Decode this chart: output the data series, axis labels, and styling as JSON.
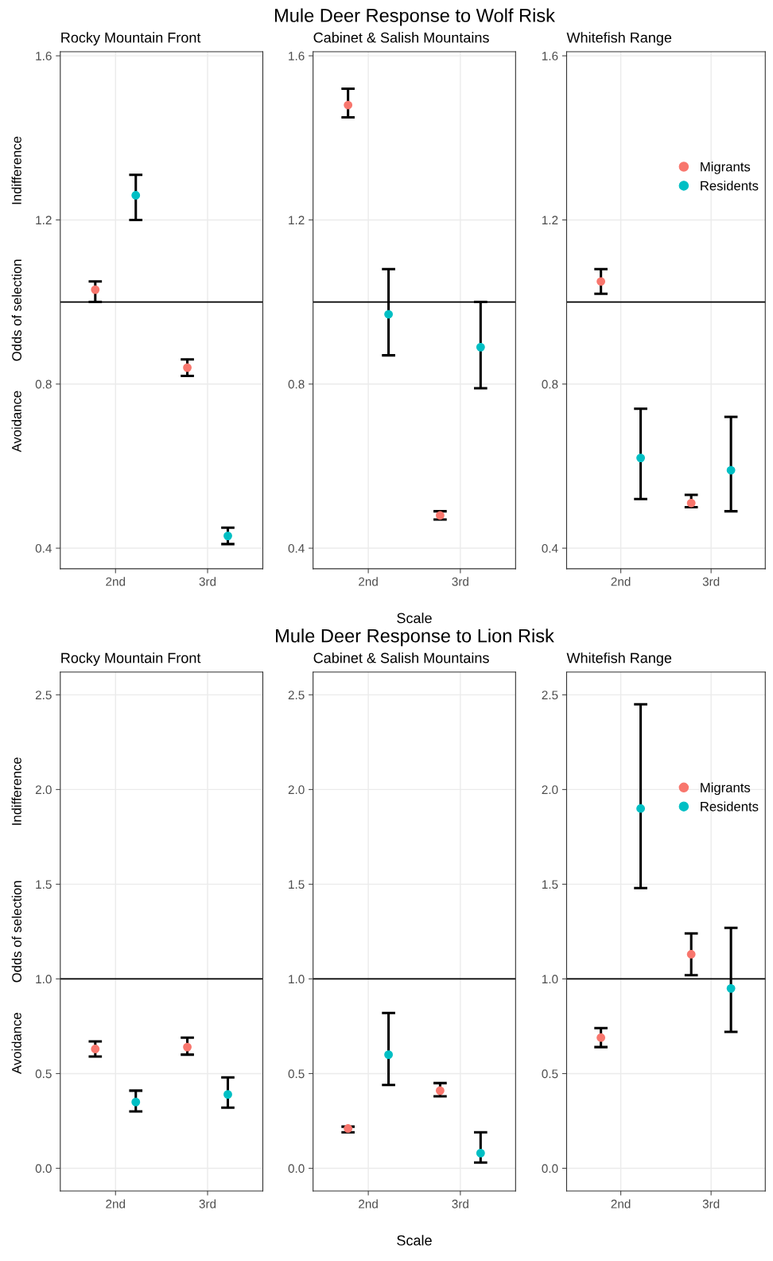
{
  "chart_data": [
    {
      "type": "scatter",
      "subtitle": "Rocky Mountain Front",
      "ylabel": "Odds of selection",
      "annotations": [
        "Indifference",
        "Avoidance"
      ],
      "categories": [
        "2nd",
        "3rd"
      ],
      "ylim": [
        0.35,
        1.61
      ],
      "yticks": [
        {
          "value": 0.4,
          "label": "0.4"
        },
        {
          "value": 0.8,
          "label": "0.8"
        },
        {
          "value": 1.2,
          "label": "1.2"
        },
        {
          "value": 1.6,
          "label": "1.6"
        }
      ],
      "grid": true,
      "marker": "circle",
      "ref_lines": [
        {
          "axis": "y",
          "value": 1.0,
          "color": "#000000"
        }
      ],
      "series": [
        {
          "color": "#f8766d",
          "values": [
            1.03,
            0.84
          ],
          "errors": [
            [
              1.0,
              1.05
            ],
            [
              0.82,
              0.86
            ]
          ]
        },
        {
          "color": "#00bfc4",
          "values": [
            1.26,
            0.43
          ],
          "errors": [
            [
              1.2,
              1.31
            ],
            [
              0.41,
              0.45
            ]
          ]
        }
      ]
    },
    {
      "type": "scatter",
      "title": "Mule Deer Response to Wolf Risk",
      "subtitle": "Cabinet & Salish Mountains",
      "xlabel": "Scale",
      "categories": [
        "2nd",
        "3rd"
      ],
      "ylim": [
        0.35,
        1.61
      ],
      "yticks": [
        {
          "value": 0.4,
          "label": "0.4"
        },
        {
          "value": 0.8,
          "label": "0.8"
        },
        {
          "value": 1.2,
          "label": "1.2"
        },
        {
          "value": 1.6,
          "label": "1.6"
        }
      ],
      "grid": true,
      "marker": "circle",
      "ref_lines": [
        {
          "axis": "y",
          "value": 1.0,
          "color": "#000000"
        }
      ],
      "series": [
        {
          "color": "#f8766d",
          "values": [
            1.48,
            0.48
          ],
          "errors": [
            [
              1.45,
              1.52
            ],
            [
              0.47,
              0.49
            ]
          ]
        },
        {
          "color": "#00bfc4",
          "values": [
            0.97,
            0.89
          ],
          "errors": [
            [
              0.87,
              1.08
            ],
            [
              0.79,
              1.0
            ]
          ]
        }
      ]
    },
    {
      "type": "scatter",
      "subtitle": "Whitefish Range",
      "categories": [
        "2nd",
        "3rd"
      ],
      "ylim": [
        0.35,
        1.61
      ],
      "yticks": [
        {
          "value": 0.4,
          "label": "0.4"
        },
        {
          "value": 0.8,
          "label": "0.8"
        },
        {
          "value": 1.2,
          "label": "1.2"
        },
        {
          "value": 1.6,
          "label": "1.6"
        }
      ],
      "grid": true,
      "marker": "circle",
      "legend": "top right",
      "ref_lines": [
        {
          "axis": "y",
          "value": 1.0,
          "color": "#000000"
        }
      ],
      "series": [
        {
          "name": "Migrants",
          "color": "#f8766d",
          "values": [
            1.05,
            0.51
          ],
          "errors": [
            [
              1.02,
              1.08
            ],
            [
              0.5,
              0.53
            ]
          ]
        },
        {
          "name": "Residents",
          "color": "#00bfc4",
          "values": [
            0.62,
            0.59
          ],
          "errors": [
            [
              0.52,
              0.74
            ],
            [
              0.49,
              0.72
            ]
          ]
        }
      ]
    },
    {
      "type": "scatter",
      "subtitle": "Rocky Mountain Front",
      "ylabel": "Odds of selection",
      "annotations": [
        "Indifference",
        "Avoidance"
      ],
      "categories": [
        "2nd",
        "3rd"
      ],
      "ylim": [
        -0.12,
        2.62
      ],
      "yticks": [
        {
          "value": 0.0,
          "label": "0.0"
        },
        {
          "value": 0.5,
          "label": "0.5"
        },
        {
          "value": 1.0,
          "label": "1.0"
        },
        {
          "value": 1.5,
          "label": "1.5"
        },
        {
          "value": 2.0,
          "label": "2.0"
        },
        {
          "value": 2.5,
          "label": "2.5"
        }
      ],
      "grid": true,
      "marker": "circle",
      "ref_lines": [
        {
          "axis": "y",
          "value": 1.0,
          "color": "#000000"
        }
      ],
      "series": [
        {
          "color": "#f8766d",
          "values": [
            0.63,
            0.64
          ],
          "errors": [
            [
              0.59,
              0.67
            ],
            [
              0.6,
              0.69
            ]
          ]
        },
        {
          "color": "#00bfc4",
          "values": [
            0.35,
            0.39
          ],
          "errors": [
            [
              0.3,
              0.41
            ],
            [
              0.32,
              0.48
            ]
          ]
        }
      ]
    },
    {
      "type": "scatter",
      "title": "Mule Deer Response to Lion Risk",
      "subtitle": "Cabinet & Salish Mountains",
      "xlabel": "Scale",
      "categories": [
        "2nd",
        "3rd"
      ],
      "ylim": [
        -0.12,
        2.62
      ],
      "yticks": [
        {
          "value": 0.0,
          "label": "0.0"
        },
        {
          "value": 0.5,
          "label": "0.5"
        },
        {
          "value": 1.0,
          "label": "1.0"
        },
        {
          "value": 1.5,
          "label": "1.5"
        },
        {
          "value": 2.0,
          "label": "2.0"
        },
        {
          "value": 2.5,
          "label": "2.5"
        }
      ],
      "grid": true,
      "marker": "circle",
      "ref_lines": [
        {
          "axis": "y",
          "value": 1.0,
          "color": "#000000"
        }
      ],
      "series": [
        {
          "color": "#f8766d",
          "values": [
            0.21,
            0.41
          ],
          "errors": [
            [
              0.19,
              0.22
            ],
            [
              0.38,
              0.45
            ]
          ]
        },
        {
          "color": "#00bfc4",
          "values": [
            0.6,
            0.08
          ],
          "errors": [
            [
              0.44,
              0.82
            ],
            [
              0.03,
              0.19
            ]
          ]
        }
      ]
    },
    {
      "type": "scatter",
      "subtitle": "Whitefish Range",
      "categories": [
        "2nd",
        "3rd"
      ],
      "ylim": [
        -0.12,
        2.62
      ],
      "yticks": [
        {
          "value": 0.0,
          "label": "0.0"
        },
        {
          "value": 0.5,
          "label": "0.5"
        },
        {
          "value": 1.0,
          "label": "1.0"
        },
        {
          "value": 1.5,
          "label": "1.5"
        },
        {
          "value": 2.0,
          "label": "2.0"
        },
        {
          "value": 2.5,
          "label": "2.5"
        }
      ],
      "grid": true,
      "marker": "circle",
      "legend": "top right",
      "ref_lines": [
        {
          "axis": "y",
          "value": 1.0,
          "color": "#000000"
        }
      ],
      "series": [
        {
          "name": "Migrants",
          "color": "#f8766d",
          "values": [
            0.69,
            1.13
          ],
          "errors": [
            [
              0.64,
              0.74
            ],
            [
              1.02,
              1.24
            ]
          ]
        },
        {
          "name": "Residents",
          "color": "#00bfc4",
          "values": [
            1.9,
            0.95
          ],
          "errors": [
            [
              1.48,
              2.45
            ],
            [
              0.72,
              1.27
            ]
          ]
        }
      ]
    }
  ]
}
